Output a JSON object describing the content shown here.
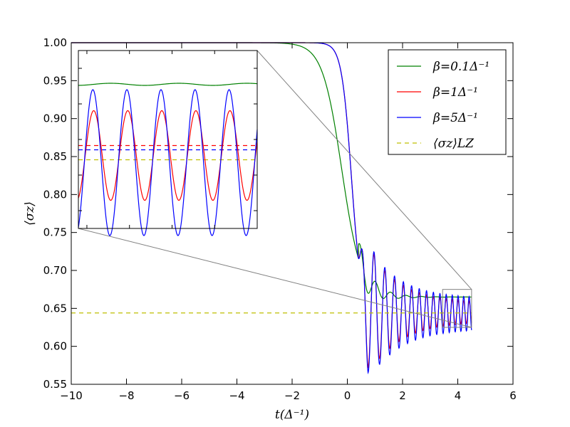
{
  "chart_data": {
    "type": "line",
    "xlabel": "t(Δ⁻¹)",
    "ylabel": "⟨σz⟩",
    "xlim": [
      -10,
      6
    ],
    "ylim": [
      0.55,
      1.0
    ],
    "xticks": [
      "−10",
      "−8",
      "−6",
      "−4",
      "−2",
      "0",
      "2",
      "4",
      "6"
    ],
    "xtick_values": [
      -10,
      -8,
      -6,
      -4,
      -2,
      0,
      2,
      4,
      6
    ],
    "yticks": [
      "0.55",
      "0.60",
      "0.65",
      "0.70",
      "0.75",
      "0.80",
      "0.85",
      "0.90",
      "0.95",
      "1.00"
    ],
    "ytick_values": [
      0.55,
      0.6,
      0.65,
      0.7,
      0.75,
      0.8,
      0.85,
      0.9,
      0.95,
      1.0
    ],
    "grid": false,
    "legend_position": "top-right",
    "series": [
      {
        "name": "β=0.1Δ⁻¹",
        "color": "#008000",
        "x": [
          -10,
          -6,
          -4,
          -3,
          -2,
          -1.5,
          -1,
          -0.5,
          0,
          0.25,
          0.5,
          0.75,
          1.0,
          1.25,
          1.5,
          1.75,
          2.0,
          2.5,
          3.0,
          3.5,
          4.0,
          4.5
        ],
        "y": [
          1.0,
          1.0,
          0.999,
          0.996,
          0.99,
          0.98,
          0.955,
          0.92,
          0.86,
          0.79,
          0.7,
          0.65,
          0.665,
          0.675,
          0.668,
          0.663,
          0.667,
          0.666,
          0.665,
          0.665,
          0.665,
          0.665
        ]
      },
      {
        "name": "β=1Δ⁻¹",
        "color": "#ff0000",
        "x": [
          -10,
          -4,
          -2,
          -1.5,
          -1,
          -0.5,
          -0.25,
          0,
          0.25,
          0.5,
          0.75,
          1.0,
          1.25,
          1.5,
          1.75,
          2.0,
          2.5,
          3.0,
          3.5,
          4.0,
          4.5
        ],
        "y": [
          1.0,
          0.999,
          0.996,
          0.993,
          0.985,
          0.97,
          0.94,
          0.88,
          0.75,
          0.62,
          0.565,
          0.62,
          0.71,
          0.67,
          0.61,
          0.68,
          0.625,
          0.67,
          0.63,
          0.665,
          0.655
        ]
      },
      {
        "name": "β=5Δ⁻¹",
        "color": "#0000ff",
        "x": [
          -10,
          -4,
          -2,
          -1.5,
          -1,
          -0.5,
          -0.25,
          0,
          0.25,
          0.5,
          0.75,
          1.0,
          1.25,
          1.5,
          1.75,
          2.0,
          2.5,
          3.0,
          3.5,
          4.0,
          4.5
        ],
        "y": [
          1.0,
          0.999,
          0.996,
          0.993,
          0.985,
          0.97,
          0.94,
          0.88,
          0.75,
          0.62,
          0.555,
          0.63,
          0.715,
          0.66,
          0.6,
          0.69,
          0.615,
          0.675,
          0.625,
          0.67,
          0.655
        ]
      },
      {
        "name": "⟨σz⟩LZ",
        "color": "#bfbf00",
        "dashed": true,
        "x": [
          -10,
          4.5
        ],
        "y": [
          0.644,
          0.644
        ]
      }
    ],
    "zoom_region": {
      "x": [
        3.45,
        4.5
      ],
      "y": [
        0.625,
        0.675
      ]
    },
    "inset": {
      "xlim": [
        3.45,
        4.5
      ],
      "ylim": [
        0.625,
        0.675
      ],
      "period": 0.2,
      "green": {
        "mean": 0.6655,
        "amp": 0.0003
      },
      "red": {
        "center": 0.6455,
        "amp": 0.0126
      },
      "blue": {
        "center": 0.6435,
        "amp": 0.0205
      },
      "dashed_red": 0.6483,
      "dashed_blue": 0.6471,
      "dashed_lz": 0.6443
    }
  }
}
